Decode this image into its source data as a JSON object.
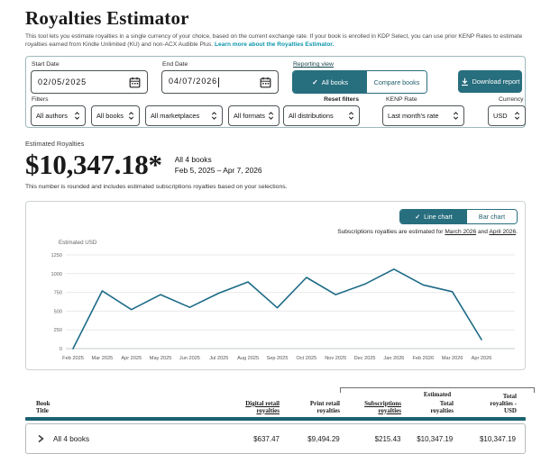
{
  "colors": {
    "accent": "#276e7e",
    "table_bar": "#1c6272",
    "line": "#1d6a87",
    "grid": "#e9e9e9",
    "axis": "#c3c9cb",
    "link": "#0d96ab"
  },
  "header": {
    "title": "Royalties Estimator",
    "description": "This tool lets you estimate royalties in a single currency of your choice, based on the current exchange rate. If your book is enrolled in KDP Select, you can use prior KENP Rates to estimate royalties earned from Kindle Unlimited (KU) and non-ACX Audible Plus.",
    "learn_more": "Learn more about the Royalties Estimator."
  },
  "controls": {
    "start_date": {
      "label": "Start Date",
      "value": "02/05/2025"
    },
    "end_date": {
      "label": "End Date",
      "value": "04/07/2026"
    },
    "reporting_view": {
      "label": "Reporting view",
      "option_all": "All books",
      "option_compare": "Compare books",
      "selected": "All books"
    },
    "download_label": "Download report",
    "filters_label": "Filters",
    "filter_authors": "All authors",
    "filter_books": "All books",
    "filter_marketplaces": "All marketplaces",
    "filter_formats": "All formats",
    "filter_distributions": "All distributions",
    "reset_filters": "Reset filters",
    "kenp_label": "KENP Rate",
    "kenp_value": "Last month's rate",
    "currency_label": "Currency",
    "currency_value": "USD"
  },
  "summary": {
    "label": "Estimated Royalties",
    "amount": "$10,347.18*",
    "scope": "All 4 books",
    "range": "Feb 5, 2025 – Apr 7, 2026",
    "note": "This number is rounded and includes estimated subscriptions royalties based on your selections."
  },
  "chart": {
    "toggle_line": "Line chart",
    "toggle_bar": "Bar chart",
    "toggle_selected": "Line chart",
    "note_prefix": "Subscriptions royalties are estimated for ",
    "note_link1": "March 2026",
    "note_mid": " and ",
    "note_link2": "April 2026",
    "note_suffix": "."
  },
  "chart_data": {
    "type": "line",
    "title": "",
    "xlabel": "",
    "ylabel": "Estimated USD",
    "x": [
      "Feb 2025",
      "Mar 2025",
      "Apr 2025",
      "May 2025",
      "Jun 2025",
      "Jul 2025",
      "Aug 2025",
      "Sep 2025",
      "Oct 2025",
      "Nov 2025",
      "Dec 2025",
      "Jan 2026",
      "Feb 2026",
      "Mar 2026",
      "Apr 2026"
    ],
    "values": [
      0,
      770,
      520,
      720,
      550,
      740,
      890,
      545,
      950,
      720,
      860,
      1060,
      850,
      760,
      120
    ],
    "ylim": [
      0,
      1250
    ],
    "yticks": [
      0,
      250,
      500,
      750,
      1000,
      1250
    ],
    "grid": true,
    "legend": false,
    "line_color": "#1d6a87"
  },
  "table": {
    "estimated_group_label": "Estimated",
    "columns": [
      {
        "label": "Book Title",
        "underline": false
      },
      {
        "label": "Digital retail royalties",
        "underline": true
      },
      {
        "label": "Print retail royalties",
        "underline": false
      },
      {
        "label": "Subscriptions royalties",
        "underline": true
      },
      {
        "label": "Total royalties",
        "underline": false
      },
      {
        "label": "Total royalties - USD",
        "underline": false
      }
    ],
    "rows": [
      {
        "cells": [
          "All 4 books",
          "$637.47",
          "$9,494.29",
          "$215.43",
          "$10,347.19",
          "$10,347.19"
        ]
      }
    ]
  }
}
